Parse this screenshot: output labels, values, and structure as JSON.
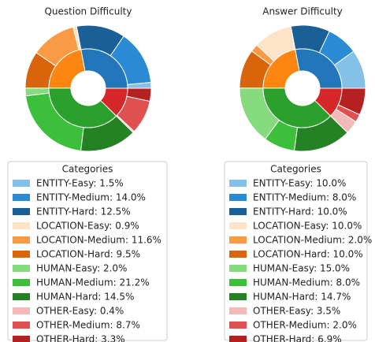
{
  "chart_data": [
    {
      "type": "sunburst",
      "title": "Question Difficulty",
      "legend_title": "Categories",
      "categories": [
        "ENTITY-Easy",
        "ENTITY-Medium",
        "ENTITY-Hard",
        "LOCATION-Easy",
        "LOCATION-Medium",
        "LOCATION-Hard",
        "HUMAN-Easy",
        "HUMAN-Medium",
        "HUMAN-Hard",
        "OTHER-Easy",
        "OTHER-Medium",
        "OTHER-Hard"
      ],
      "values": [
        1.5,
        14.0,
        12.5,
        0.9,
        11.6,
        9.5,
        2.0,
        21.2,
        14.5,
        0.4,
        8.7,
        3.3
      ],
      "legend_labels": [
        "ENTITY-Easy: 1.5%",
        "ENTITY-Medium: 14.0%",
        "ENTITY-Hard: 12.5%",
        "LOCATION-Easy: 0.9%",
        "LOCATION-Medium: 11.6%",
        "LOCATION-Hard: 9.5%",
        "HUMAN-Easy: 2.0%",
        "HUMAN-Medium: 21.2%",
        "HUMAN-Hard: 14.5%",
        "OTHER-Easy: 0.4%",
        "OTHER-Medium: 8.7%",
        "OTHER-Hard: 3.3%"
      ],
      "colors": [
        "#85c0e9",
        "#2a8ad4",
        "#1a5f96",
        "#fde3c8",
        "#fb9a45",
        "#d9640a",
        "#86db7f",
        "#3cbf3a",
        "#248124",
        "#f4b9b9",
        "#e05050",
        "#b52020"
      ],
      "inner_colors": [
        "#2276b9",
        "#fd8511",
        "#2ca02c",
        "#d62728"
      ]
    },
    {
      "type": "sunburst",
      "title": "Answer Difficulty",
      "legend_title": "Categories",
      "categories": [
        "ENTITY-Easy",
        "ENTITY-Medium",
        "ENTITY-Hard",
        "LOCATION-Easy",
        "LOCATION-Medium",
        "LOCATION-Hard",
        "HUMAN-Easy",
        "HUMAN-Medium",
        "HUMAN-Hard",
        "OTHER-Easy",
        "OTHER-Medium",
        "OTHER-Hard"
      ],
      "values": [
        10.0,
        8.0,
        10.0,
        10.0,
        2.0,
        10.0,
        15.0,
        8.0,
        14.7,
        3.5,
        2.0,
        6.9
      ],
      "legend_labels": [
        "ENTITY-Easy: 10.0%",
        "ENTITY-Medium: 8.0%",
        "ENTITY-Hard: 10.0%",
        "LOCATION-Easy: 10.0%",
        "LOCATION-Medium: 2.0%",
        "LOCATION-Hard: 10.0%",
        "HUMAN-Easy: 15.0%",
        "HUMAN-Medium: 8.0%",
        "HUMAN-Hard: 14.7%",
        "OTHER-Easy: 3.5%",
        "OTHER-Medium: 2.0%",
        "OTHER-Hard: 6.9%"
      ],
      "colors": [
        "#85c0e9",
        "#2a8ad4",
        "#1a5f96",
        "#fde3c8",
        "#fb9a45",
        "#d9640a",
        "#86db7f",
        "#3cbf3a",
        "#248124",
        "#f4b9b9",
        "#e05050",
        "#b52020"
      ],
      "inner_colors": [
        "#2276b9",
        "#fd8511",
        "#2ca02c",
        "#d62728"
      ]
    }
  ]
}
